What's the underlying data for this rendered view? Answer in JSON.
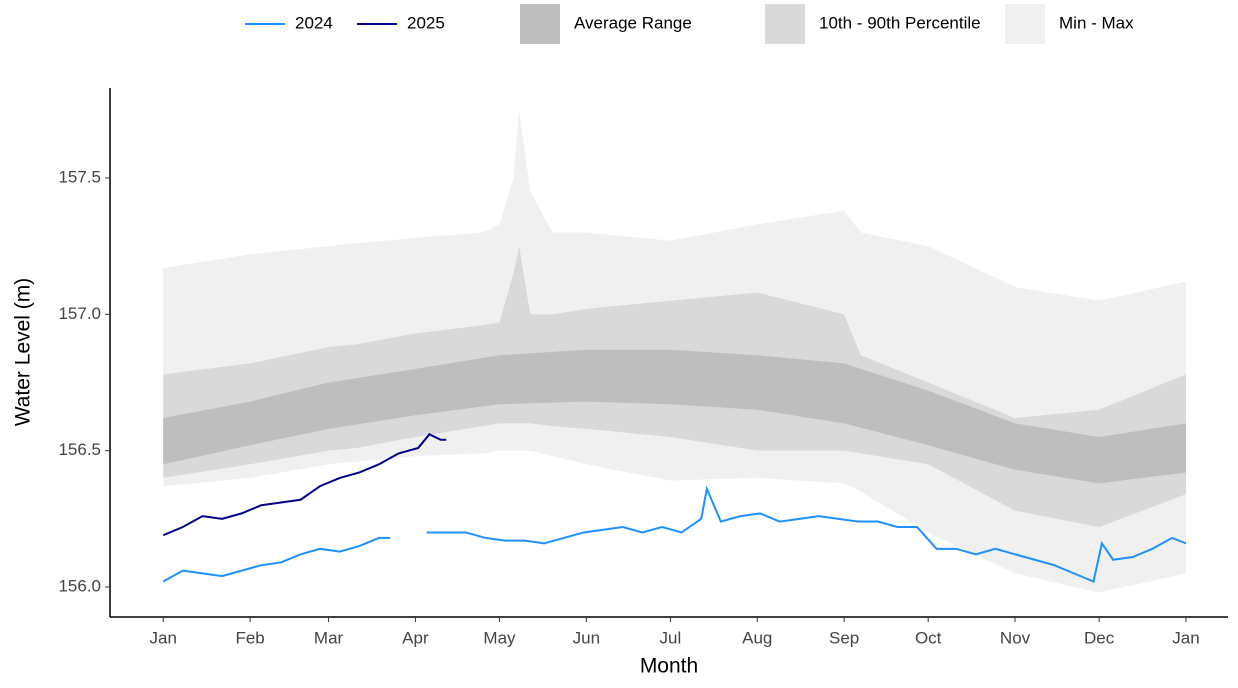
{
  "chart_data": {
    "type": "ribbon-line",
    "xlabel": "Month",
    "ylabel": "Water Level (m)",
    "xlim": [
      -18,
      381
    ],
    "ylim": [
      155.89,
      157.83
    ],
    "xticks": [
      {
        "value": 1,
        "label": "Jan"
      },
      {
        "value": 32,
        "label": "Feb"
      },
      {
        "value": 60,
        "label": "Mar"
      },
      {
        "value": 91,
        "label": "Apr"
      },
      {
        "value": 121,
        "label": "May"
      },
      {
        "value": 152,
        "label": "Jun"
      },
      {
        "value": 182,
        "label": "Jul"
      },
      {
        "value": 213,
        "label": "Aug"
      },
      {
        "value": 244,
        "label": "Sep"
      },
      {
        "value": 274,
        "label": "Oct"
      },
      {
        "value": 305,
        "label": "Nov"
      },
      {
        "value": 335,
        "label": "Dec"
      },
      {
        "value": 366,
        "label": "Jan"
      }
    ],
    "yticks": [
      {
        "value": 156.0,
        "label": "156.0"
      },
      156.5,
      {
        "value": 157.0,
        "label": "157.0"
      },
      157.5
    ],
    "grid": false,
    "legend": "top",
    "bands": [
      {
        "name": "Min - Max",
        "color": "#f0f0f0",
        "x": [
          1,
          32,
          60,
          70,
          91,
          115,
          121,
          126,
          128,
          132,
          140,
          152,
          182,
          213,
          244,
          250,
          274,
          305,
          335,
          366
        ],
        "lower": [
          156.37,
          156.4,
          156.45,
          156.46,
          156.48,
          156.49,
          156.5,
          156.5,
          156.5,
          156.5,
          156.48,
          156.45,
          156.39,
          156.4,
          156.38,
          156.35,
          156.2,
          156.05,
          155.98,
          156.05
        ],
        "upper": [
          157.17,
          157.22,
          157.25,
          157.26,
          157.28,
          157.3,
          157.33,
          157.5,
          157.75,
          157.45,
          157.3,
          157.3,
          157.27,
          157.33,
          157.38,
          157.3,
          157.25,
          157.1,
          157.05,
          157.12
        ]
      },
      {
        "name": "10th - 90th Percentile",
        "color": "#d9d9d9",
        "x": [
          1,
          32,
          60,
          70,
          91,
          115,
          121,
          126,
          128,
          132,
          140,
          152,
          182,
          213,
          244,
          250,
          274,
          305,
          335,
          366
        ],
        "lower": [
          156.4,
          156.45,
          156.5,
          156.51,
          156.55,
          156.59,
          156.6,
          156.6,
          156.6,
          156.6,
          156.59,
          156.58,
          156.55,
          156.5,
          156.5,
          156.49,
          156.45,
          156.28,
          156.22,
          156.34
        ],
        "upper": [
          156.78,
          156.82,
          156.88,
          156.89,
          156.93,
          156.96,
          156.97,
          157.15,
          157.25,
          157.0,
          157.0,
          157.02,
          157.05,
          157.08,
          157.0,
          156.85,
          156.75,
          156.62,
          156.65,
          156.78
        ]
      },
      {
        "name": "Average Range",
        "color": "#bebebe",
        "x": [
          1,
          32,
          60,
          91,
          121,
          152,
          182,
          213,
          244,
          274,
          305,
          335,
          366
        ],
        "lower": [
          156.45,
          156.52,
          156.58,
          156.63,
          156.67,
          156.68,
          156.67,
          156.65,
          156.6,
          156.52,
          156.43,
          156.38,
          156.42
        ],
        "upper": [
          156.62,
          156.68,
          156.75,
          156.8,
          156.85,
          156.87,
          156.87,
          156.85,
          156.82,
          156.72,
          156.6,
          156.55,
          156.6
        ]
      }
    ],
    "series": [
      {
        "name": "2024",
        "color": "#1e90ff",
        "x": [
          1,
          8,
          15,
          22,
          29,
          36,
          43,
          50,
          57,
          64,
          71,
          78,
          82,
          88,
          95,
          102,
          109,
          116,
          123,
          130,
          137,
          144,
          151,
          158,
          165,
          172,
          179,
          186,
          193,
          195,
          200,
          207,
          214,
          221,
          228,
          235,
          242,
          249,
          256,
          263,
          270,
          277,
          284,
          291,
          298,
          305,
          312,
          319,
          326,
          333,
          336,
          340,
          347,
          354,
          361,
          366
        ],
        "values": [
          156.02,
          156.06,
          156.05,
          156.04,
          156.06,
          156.08,
          156.09,
          156.12,
          156.14,
          156.13,
          156.15,
          156.18,
          156.18,
          null,
          156.2,
          156.2,
          156.2,
          156.18,
          156.17,
          156.17,
          156.16,
          156.18,
          156.2,
          156.21,
          156.22,
          156.2,
          156.22,
          156.2,
          156.25,
          156.36,
          156.24,
          156.26,
          156.27,
          156.24,
          156.25,
          156.26,
          156.25,
          156.24,
          156.24,
          156.22,
          156.22,
          156.14,
          156.14,
          156.12,
          156.14,
          156.12,
          156.1,
          156.08,
          156.05,
          156.02,
          156.16,
          156.1,
          156.11,
          156.14,
          156.18,
          156.16
        ]
      },
      {
        "name": "2025",
        "color": "#00008b",
        "x": [
          1,
          8,
          15,
          22,
          29,
          36,
          43,
          50,
          57,
          64,
          71,
          78,
          85,
          92,
          96,
          100,
          102
        ],
        "values": [
          156.19,
          156.22,
          156.26,
          156.25,
          156.27,
          156.3,
          156.31,
          156.32,
          156.37,
          156.4,
          156.42,
          156.45,
          156.49,
          156.51,
          156.56,
          156.54,
          156.54
        ]
      }
    ]
  }
}
